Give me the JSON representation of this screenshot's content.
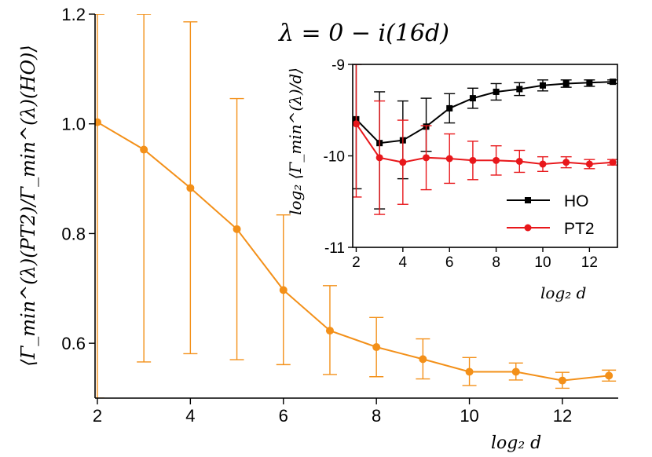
{
  "chart_data": [
    {
      "type": "line",
      "title": "λ = 0 − i(16d)",
      "xlabel": "log₂ d",
      "ylabel": "⟨Γ_min^(λ)(PT2)/Γ_min^(λ)(HO)⟩",
      "xlim": [
        1.95,
        13.2
      ],
      "ylim": [
        0.5,
        1.2
      ],
      "xticks": [
        2,
        4,
        6,
        8,
        10,
        12
      ],
      "yticks": [
        0.6,
        0.8,
        1.0,
        1.2
      ],
      "ytick_labels": [
        "0.6",
        "0.8",
        "1.0",
        "1.2"
      ],
      "grid": false,
      "series": [
        {
          "color": "#f39019",
          "marker": "circle",
          "points": [
            {
              "x": 2,
              "y": 1.003,
              "err_lo": 0.5,
              "err_hi": 1.2
            },
            {
              "x": 3,
              "y": 0.953,
              "err_lo": 0.566,
              "err_hi": 1.2
            },
            {
              "x": 4,
              "y": 0.883,
              "err_lo": 0.581,
              "err_hi": 1.186
            },
            {
              "x": 5,
              "y": 0.808,
              "err_lo": 0.57,
              "err_hi": 1.046
            },
            {
              "x": 6,
              "y": 0.697,
              "err_lo": 0.561,
              "err_hi": 0.834
            },
            {
              "x": 7,
              "y": 0.623,
              "err_lo": 0.543,
              "err_hi": 0.705
            },
            {
              "x": 8,
              "y": 0.593,
              "err_lo": 0.539,
              "err_hi": 0.647
            },
            {
              "x": 9,
              "y": 0.571,
              "err_lo": 0.535,
              "err_hi": 0.608
            },
            {
              "x": 10,
              "y": 0.548,
              "err_lo": 0.523,
              "err_hi": 0.574
            },
            {
              "x": 11,
              "y": 0.548,
              "err_lo": 0.533,
              "err_hi": 0.564
            },
            {
              "x": 12,
              "y": 0.532,
              "err_lo": 0.518,
              "err_hi": 0.547
            },
            {
              "x": 13,
              "y": 0.541,
              "err_lo": 0.531,
              "err_hi": 0.551
            }
          ]
        }
      ]
    },
    {
      "type": "line",
      "title": "",
      "xlabel": "log₂ d",
      "ylabel": "log₂ ⟨Γ_min^(λ)/d⟩",
      "xlim": [
        1.85,
        13.2
      ],
      "ylim": [
        -11,
        -9
      ],
      "xticks": [
        2,
        4,
        6,
        8,
        10,
        12
      ],
      "yticks": [
        -11,
        -10,
        -9
      ],
      "ytick_labels": [
        "-11",
        "-10",
        "-9"
      ],
      "grid": false,
      "legend_position": "bottom-right",
      "series": [
        {
          "name": "HO",
          "color": "#000000",
          "marker": "square",
          "points": [
            {
              "x": 2,
              "y": -9.6,
              "err_lo": -10.36,
              "err_hi": -9.0
            },
            {
              "x": 3,
              "y": -9.86,
              "err_lo": -10.58,
              "err_hi": -9.3
            },
            {
              "x": 4,
              "y": -9.83,
              "err_lo": -10.25,
              "err_hi": -9.4
            },
            {
              "x": 5,
              "y": -9.68,
              "err_lo": -9.95,
              "err_hi": -9.37
            },
            {
              "x": 6,
              "y": -9.48,
              "err_lo": -9.64,
              "err_hi": -9.32
            },
            {
              "x": 7,
              "y": -9.37,
              "err_lo": -9.48,
              "err_hi": -9.26
            },
            {
              "x": 8,
              "y": -9.3,
              "err_lo": -9.39,
              "err_hi": -9.21
            },
            {
              "x": 9,
              "y": -9.27,
              "err_lo": -9.34,
              "err_hi": -9.2
            },
            {
              "x": 10,
              "y": -9.23,
              "err_lo": -9.29,
              "err_hi": -9.17
            },
            {
              "x": 11,
              "y": -9.21,
              "err_lo": -9.25,
              "err_hi": -9.17
            },
            {
              "x": 12,
              "y": -9.2,
              "err_lo": -9.24,
              "err_hi": -9.17
            },
            {
              "x": 13,
              "y": -9.19,
              "err_lo": -9.21,
              "err_hi": -9.17
            }
          ]
        },
        {
          "name": "PT2",
          "color": "#e8171b",
          "marker": "circle",
          "points": [
            {
              "x": 2,
              "y": -9.65,
              "err_lo": -10.45,
              "err_hi": -9.0
            },
            {
              "x": 3,
              "y": -10.02,
              "err_lo": -10.64,
              "err_hi": -9.4
            },
            {
              "x": 4,
              "y": -10.07,
              "err_lo": -10.53,
              "err_hi": -9.61
            },
            {
              "x": 5,
              "y": -10.02,
              "err_lo": -10.37,
              "err_hi": -9.67
            },
            {
              "x": 6,
              "y": -10.03,
              "err_lo": -10.3,
              "err_hi": -9.76
            },
            {
              "x": 7,
              "y": -10.05,
              "err_lo": -10.26,
              "err_hi": -9.84
            },
            {
              "x": 8,
              "y": -10.05,
              "err_lo": -10.21,
              "err_hi": -9.89
            },
            {
              "x": 9,
              "y": -10.06,
              "err_lo": -10.18,
              "err_hi": -9.94
            },
            {
              "x": 10,
              "y": -10.09,
              "err_lo": -10.17,
              "err_hi": -10.01
            },
            {
              "x": 11,
              "y": -10.07,
              "err_lo": -10.13,
              "err_hi": -10.01
            },
            {
              "x": 12,
              "y": -10.09,
              "err_lo": -10.14,
              "err_hi": -10.04
            },
            {
              "x": 13,
              "y": -10.07,
              "err_lo": -10.1,
              "err_hi": -10.04
            }
          ]
        }
      ]
    }
  ]
}
